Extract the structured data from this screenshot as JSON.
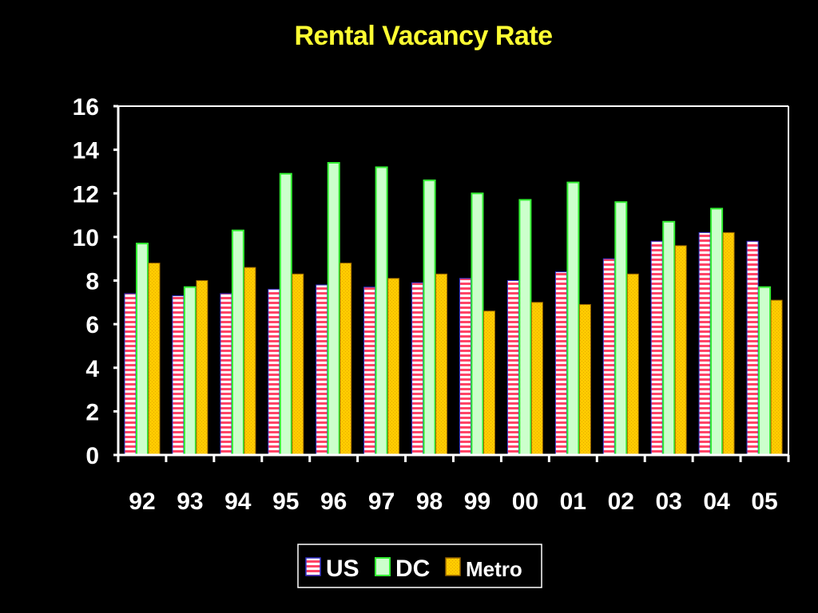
{
  "chart_data": {
    "type": "bar",
    "title": "Rental Vacancy Rate",
    "xlabel": "",
    "ylabel": "",
    "categories": [
      "92",
      "93",
      "94",
      "95",
      "96",
      "97",
      "98",
      "99",
      "00",
      "01",
      "02",
      "03",
      "04",
      "05"
    ],
    "series": [
      {
        "name": "US",
        "values": [
          7.4,
          7.3,
          7.4,
          7.6,
          7.8,
          7.7,
          7.9,
          8.1,
          8.0,
          8.4,
          9.0,
          9.8,
          10.2,
          9.8
        ],
        "fill": "#ff4466",
        "stripe": "#ffffff",
        "border": "#3333cc"
      },
      {
        "name": "DC",
        "values": [
          9.7,
          7.7,
          10.3,
          12.9,
          13.4,
          13.2,
          12.6,
          12.0,
          11.7,
          12.5,
          11.6,
          10.7,
          11.3,
          7.7
        ],
        "fill": "#ccffcc",
        "border": "#33ee33"
      },
      {
        "name": "Metro",
        "values": [
          8.8,
          8.0,
          8.6,
          8.3,
          8.8,
          8.1,
          8.3,
          6.6,
          7.0,
          6.9,
          8.3,
          9.6,
          10.2,
          7.1
        ],
        "fill": "#ffcc00",
        "border": "#996600"
      }
    ],
    "ylim": [
      0,
      16
    ],
    "yticks": [
      "0",
      "2",
      "4",
      "6",
      "8",
      "10",
      "12",
      "14",
      "16"
    ],
    "grid": false,
    "legend": "bottom-center",
    "colors": {
      "background": "#000000",
      "title": "#ffff33",
      "axis": "#ffffff",
      "text": "#ffffff"
    }
  }
}
